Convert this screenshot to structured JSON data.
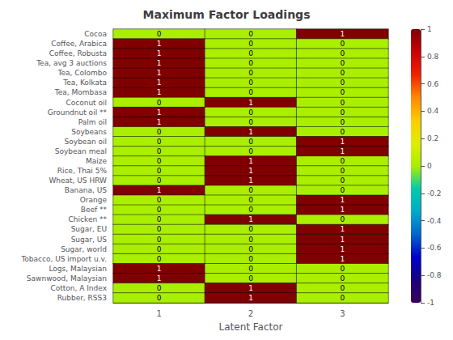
{
  "chart_data": {
    "type": "heatmap",
    "title": "Maximum Factor Loadings",
    "xlabel": "Latent Factor",
    "x": [
      "1",
      "2",
      "3"
    ],
    "y": [
      "Cocoa",
      "Coffee, Arabica",
      "Coffee, Robusta",
      "Tea, avg 3 auctions",
      "Tea, Colombo",
      "Tea, Kolkata",
      "Tea, Mombasa",
      "Coconut oil",
      "Groundnut oil **",
      "Palm oil",
      "Soybeans",
      "Soybean oil",
      "Soybean meal",
      "Maize",
      "Rice, Thai 5%",
      "Wheat, US HRW",
      "Banana, US",
      "Orange",
      "Beef **",
      "Chicken **",
      "Sugar, EU",
      "Sugar, US",
      "Sugar, world",
      "Tobacco, US import u.v.",
      "Logs, Malaysian",
      "Sawnwood, Malaysian",
      "Cotton, A Index",
      "Rubber, RSS3"
    ],
    "values": [
      [
        0,
        0,
        1
      ],
      [
        1,
        0,
        0
      ],
      [
        1,
        0,
        0
      ],
      [
        1,
        0,
        0
      ],
      [
        1,
        0,
        0
      ],
      [
        1,
        0,
        0
      ],
      [
        1,
        0,
        0
      ],
      [
        0,
        1,
        0
      ],
      [
        1,
        0,
        0
      ],
      [
        1,
        0,
        0
      ],
      [
        0,
        1,
        0
      ],
      [
        0,
        0,
        1
      ],
      [
        0,
        0,
        1
      ],
      [
        0,
        1,
        0
      ],
      [
        0,
        1,
        0
      ],
      [
        0,
        1,
        0
      ],
      [
        1,
        0,
        0
      ],
      [
        0,
        0,
        1
      ],
      [
        0,
        0,
        1
      ],
      [
        0,
        1,
        0
      ],
      [
        0,
        0,
        1
      ],
      [
        0,
        0,
        1
      ],
      [
        0,
        0,
        1
      ],
      [
        0,
        0,
        1
      ],
      [
        1,
        0,
        0
      ],
      [
        1,
        0,
        0
      ],
      [
        0,
        1,
        0
      ],
      [
        0,
        1,
        0
      ]
    ],
    "data_labels": true,
    "colorbar_range": [
      -1,
      1
    ],
    "colorbar_ticks": [
      1,
      0.8,
      0.6,
      0.4,
      0.2,
      0,
      -0.2,
      -0.4,
      -0.6,
      -0.8,
      -1
    ],
    "colors": [
      "#3b0057",
      "#1a0080",
      "#0000cc",
      "#0066cc",
      "#00aacc",
      "#00ccaa",
      "#aaee00",
      "#ddee00",
      "#ffcc00",
      "#ff8800",
      "#ee2200",
      "#cc0000",
      "#800000"
    ]
  }
}
